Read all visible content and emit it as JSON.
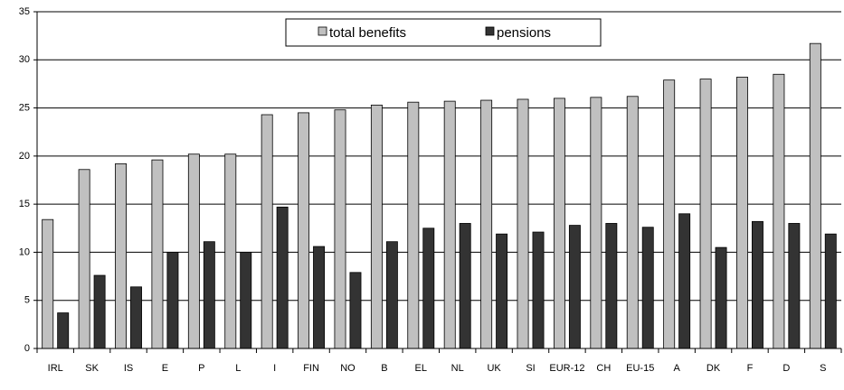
{
  "chart_data": {
    "type": "bar",
    "categories": [
      "IRL",
      "SK",
      "IS",
      "E",
      "P",
      "L",
      "I",
      "FIN",
      "NO",
      "B",
      "EL",
      "NL",
      "UK",
      "SI",
      "EUR-12",
      "CH",
      "EU-15",
      "A",
      "DK",
      "F",
      "D",
      "S"
    ],
    "series": [
      {
        "name": "total benefits",
        "color": "#c0c0c0",
        "values": [
          13.4,
          18.6,
          19.2,
          19.6,
          20.2,
          20.2,
          24.3,
          24.5,
          24.8,
          25.3,
          25.6,
          25.7,
          25.8,
          25.9,
          26.0,
          26.1,
          26.2,
          27.9,
          28.0,
          28.2,
          28.5,
          31.7
        ]
      },
      {
        "name": "pensions",
        "color": "#333333",
        "values": [
          3.7,
          7.6,
          6.4,
          10.0,
          11.1,
          10.0,
          14.7,
          10.6,
          7.9,
          11.1,
          12.5,
          13.0,
          11.9,
          12.1,
          12.8,
          13.0,
          12.6,
          14.0,
          10.5,
          13.2,
          13.0,
          11.9
        ]
      }
    ],
    "ylim": [
      0,
      35
    ],
    "yticks": [
      0,
      5,
      10,
      15,
      20,
      25,
      30,
      35
    ],
    "grid": true,
    "legend": "top"
  }
}
